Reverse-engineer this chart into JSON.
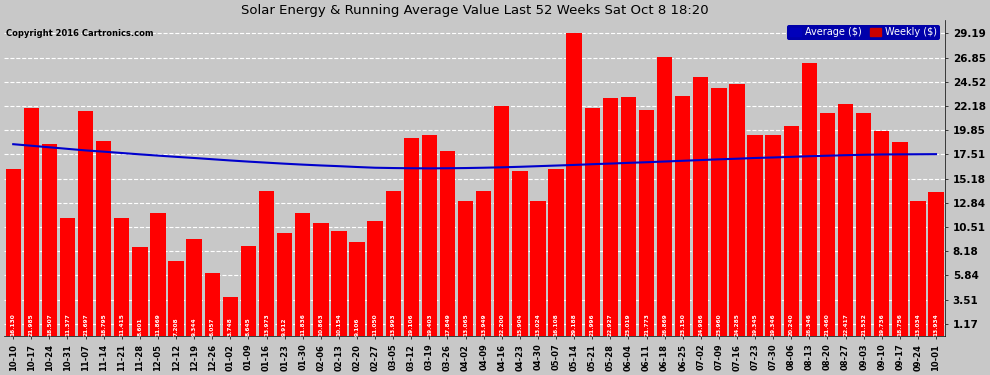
{
  "title": "Solar Energy & Running Average Value Last 52 Weeks Sat Oct 8 18:20",
  "copyright": "Copyright 2016 Cartronics.com",
  "bar_color": "#ff0000",
  "avg_line_color": "#0000cc",
  "background_color": "#c8c8c8",
  "plot_bg_color": "#c8c8c8",
  "yticks": [
    1.17,
    3.51,
    5.84,
    8.18,
    10.51,
    12.84,
    15.18,
    17.51,
    19.85,
    22.18,
    24.52,
    26.85,
    29.19
  ],
  "legend_avg_color": "#0000bb",
  "legend_weekly_color": "#cc0000",
  "categories": [
    "10-10",
    "10-17",
    "10-24",
    "10-31",
    "11-07",
    "11-14",
    "11-21",
    "11-28",
    "12-05",
    "12-12",
    "12-19",
    "12-26",
    "01-02",
    "01-09",
    "01-16",
    "01-23",
    "01-30",
    "02-06",
    "02-13",
    "02-20",
    "02-27",
    "03-05",
    "03-12",
    "03-19",
    "03-26",
    "04-02",
    "04-09",
    "04-16",
    "04-23",
    "04-30",
    "05-07",
    "05-14",
    "05-21",
    "05-28",
    "06-04",
    "06-11",
    "06-18",
    "06-25",
    "07-02",
    "07-09",
    "07-16",
    "07-23",
    "07-30",
    "08-06",
    "08-13",
    "08-20",
    "08-27",
    "09-03",
    "09-10",
    "09-17",
    "09-24",
    "10-01"
  ],
  "values": [
    16.13,
    21.985,
    18.507,
    11.377,
    21.697,
    18.795,
    11.415,
    8.601,
    11.869,
    7.208,
    9.344,
    6.057,
    3.748,
    8.645,
    13.973,
    9.912,
    11.836,
    10.863,
    10.154,
    9.106,
    11.05,
    13.993,
    19.106,
    19.403,
    17.849,
    13.065,
    13.949,
    22.2,
    15.904,
    13.024,
    16.108,
    29.188,
    21.996,
    22.927,
    23.019,
    21.773,
    26.869,
    23.15,
    24.986,
    23.96,
    24.285,
    19.345,
    19.346,
    20.24,
    26.346,
    21.46,
    22.417,
    21.532,
    19.736,
    18.756,
    13.034,
    13.934
  ],
  "avg_values": [
    18.5,
    18.35,
    18.2,
    18.05,
    17.9,
    17.78,
    17.65,
    17.52,
    17.4,
    17.28,
    17.17,
    17.05,
    16.93,
    16.82,
    16.72,
    16.62,
    16.53,
    16.45,
    16.38,
    16.3,
    16.23,
    16.2,
    16.18,
    16.17,
    16.18,
    16.2,
    16.23,
    16.27,
    16.32,
    16.38,
    16.44,
    16.5,
    16.57,
    16.63,
    16.7,
    16.76,
    16.83,
    16.9,
    16.97,
    17.04,
    17.1,
    17.17,
    17.22,
    17.28,
    17.34,
    17.39,
    17.44,
    17.48,
    17.51,
    17.52,
    17.53,
    17.54
  ],
  "ylim_max": 30.5,
  "figsize": [
    9.9,
    3.75
  ],
  "dpi": 100
}
